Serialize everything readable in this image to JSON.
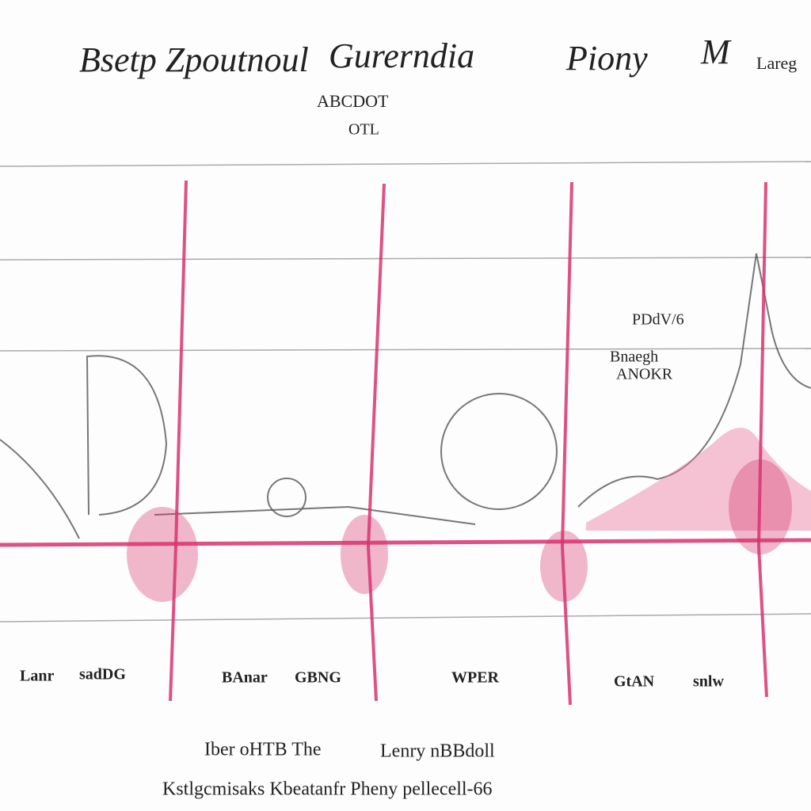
{
  "header": {
    "words": [
      "Bsetp Zpoutnoul",
      "Gurerndia",
      "Piony",
      "M",
      "Lareg"
    ],
    "subtitle": [
      "ABCDOT",
      "OTL"
    ]
  },
  "annotations": [
    "PDdV/6",
    "Bnaegh",
    "ANOKR"
  ],
  "labels": [
    "Lanr",
    "sadDG",
    "BAnar",
    "GBNG",
    "WPER",
    "GtAN",
    "snlw"
  ],
  "footer": [
    "Iber oHTB The",
    "Lenry nBBdoll",
    "Kstlgcmisaks Kbeatanfr Pheny pellecell-66"
  ]
}
